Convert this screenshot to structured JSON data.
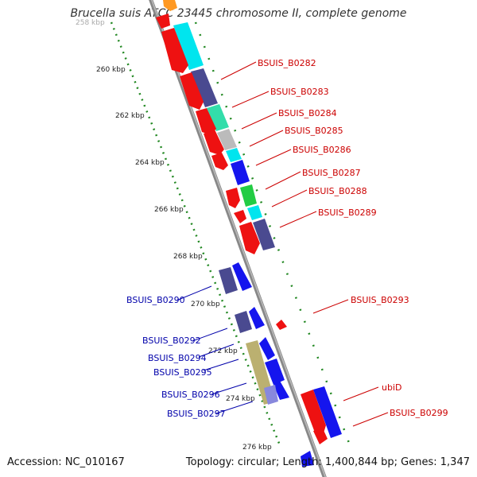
{
  "title": "Brucella suis ATCC 23445 chromosome II, complete genome",
  "footer": {
    "accession": "Accession: NC_010167",
    "stats": "Topology: circular; Length: 1,400,844 bp; Genes: 1,347"
  },
  "ruler_ticks": [
    "258 kbp",
    "260 kbp",
    "262 kbp",
    "264 kbp",
    "266 kbp",
    "268 kbp",
    "270 kbp",
    "272 kbp",
    "274 kbp",
    "276 kbp"
  ],
  "gene_labels_right": [
    "BSUIS_B0282",
    "BSUIS_B0283",
    "BSUIS_B0284",
    "BSUIS_B0285",
    "BSUIS_B0286",
    "BSUIS_B0287",
    "BSUIS_B0288",
    "BSUIS_B0289",
    "BSUIS_B0293",
    "ubiD",
    "BSUIS_B0299"
  ],
  "gene_labels_left": [
    "BSUIS_B0290",
    "BSUIS_B0292",
    "BSUIS_B0294",
    "BSUIS_B0295",
    "BSUIS_B0296",
    "BSUIS_B0297"
  ],
  "colors": {
    "forward_label": "#cc0000",
    "reverse_label": "#0000aa",
    "red_cds": "#ee1111",
    "cyan": "#00e5ee",
    "slate": "#4a4a90",
    "green": "#22cc44",
    "mint": "#33ddaa",
    "grey": "#bbbbbb",
    "blue": "#1515ee",
    "olive": "#bbb070",
    "backbone": "#888888"
  }
}
